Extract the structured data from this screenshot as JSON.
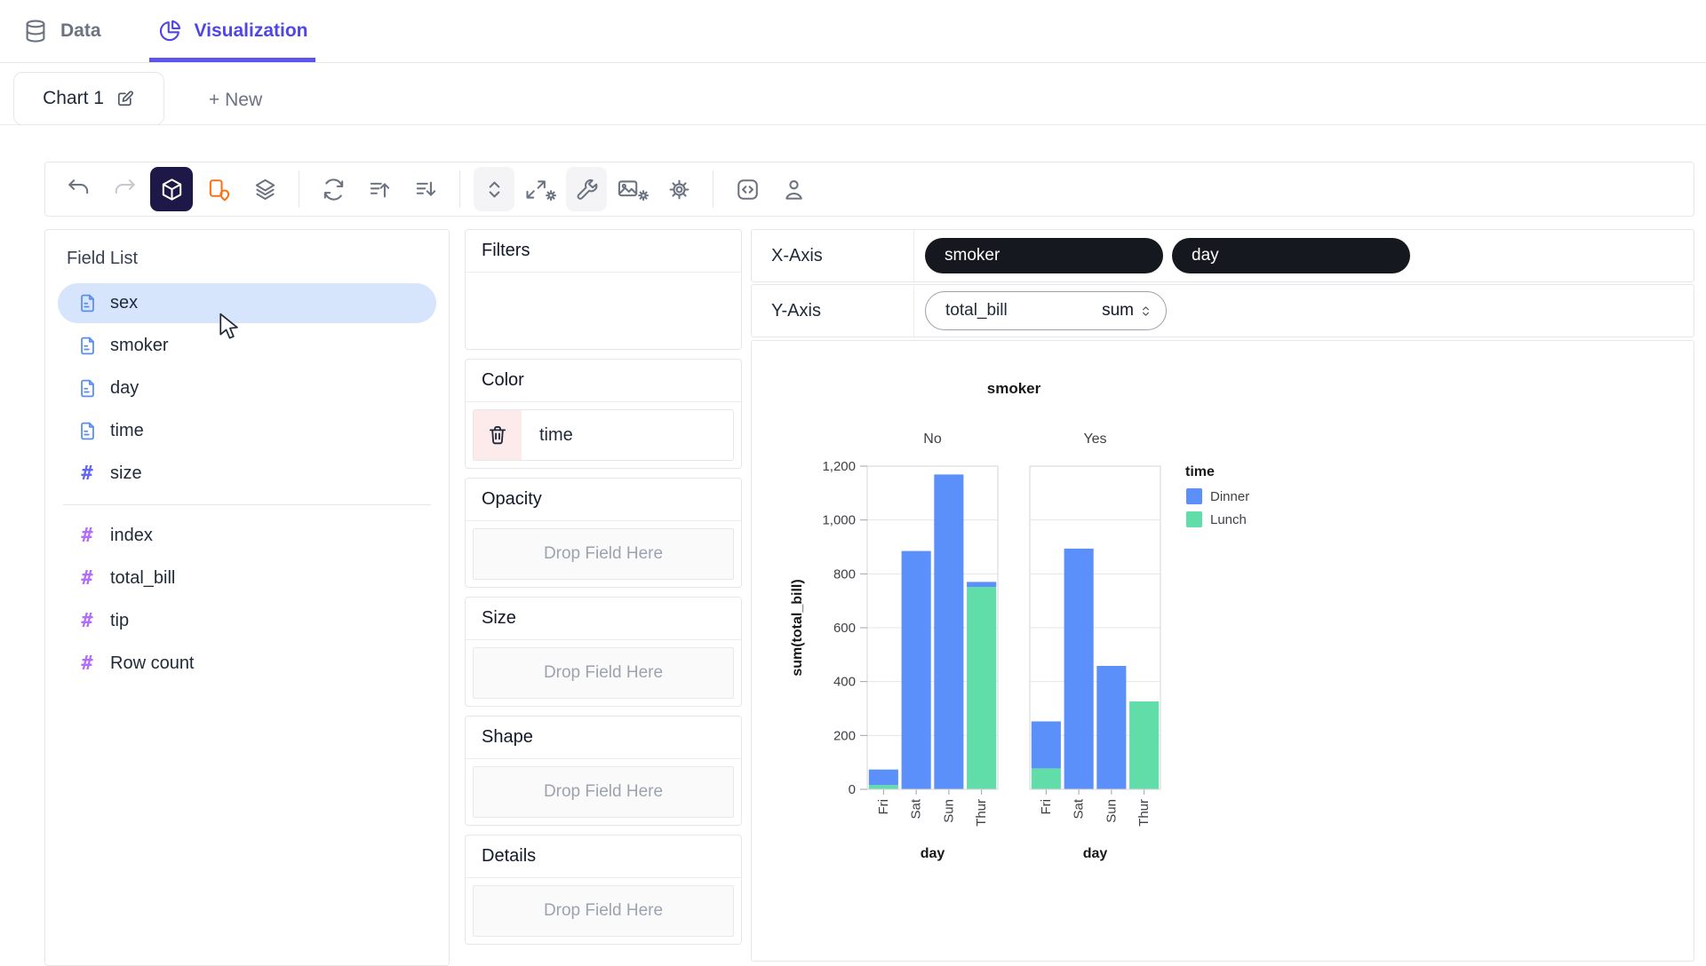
{
  "header": {
    "tabs": [
      {
        "id": "data",
        "label": "Data",
        "icon": "database"
      },
      {
        "id": "visualization",
        "label": "Visualization",
        "icon": "pie",
        "active": true
      }
    ]
  },
  "chart_tabs": {
    "active_label": "Chart 1",
    "edit_icon": "pencil",
    "new_label": "+ New"
  },
  "toolbar": {
    "items": [
      {
        "type": "btn",
        "icon": "undo",
        "name": "undo"
      },
      {
        "type": "btn",
        "icon": "redo",
        "name": "redo",
        "disabled": true
      },
      {
        "type": "btn",
        "icon": "cube",
        "name": "mark-type",
        "active": true
      },
      {
        "type": "btn",
        "icon": "geo-pin",
        "name": "geographic-mode",
        "orange": true
      },
      {
        "type": "btn",
        "icon": "layers",
        "name": "stack-mode"
      },
      {
        "type": "sep"
      },
      {
        "type": "btn",
        "icon": "refresh",
        "name": "transpose"
      },
      {
        "type": "btn",
        "icon": "sort-asc",
        "name": "sort-ascending"
      },
      {
        "type": "btn",
        "icon": "sort-desc",
        "name": "sort-descending"
      },
      {
        "type": "sep"
      },
      {
        "type": "btn",
        "icon": "chevrons-updown",
        "name": "axes-resize",
        "raised": true
      },
      {
        "type": "btn",
        "icon": "expand-gear",
        "name": "resize-settings",
        "wide": true
      },
      {
        "type": "btn",
        "icon": "wrench",
        "name": "wrench-tool",
        "raised": true
      },
      {
        "type": "btn",
        "icon": "image-gear",
        "name": "export-image",
        "wide": true
      },
      {
        "type": "btn",
        "icon": "gear",
        "name": "settings"
      },
      {
        "type": "sep"
      },
      {
        "type": "btn",
        "icon": "code",
        "name": "export-code"
      },
      {
        "type": "btn",
        "icon": "person",
        "name": "user"
      }
    ]
  },
  "field_list": {
    "title": "Field List",
    "groups": [
      {
        "name": "dimensions",
        "items": [
          {
            "label": "sex",
            "icon": "doc",
            "selected": true
          },
          {
            "label": "smoker",
            "icon": "doc"
          },
          {
            "label": "day",
            "icon": "doc"
          },
          {
            "label": "time",
            "icon": "doc"
          },
          {
            "label": "size",
            "icon": "hash",
            "icon_color": "#6366f1"
          }
        ]
      },
      {
        "name": "measures",
        "items": [
          {
            "label": "index",
            "icon": "hash",
            "icon_color": "#b26ef7"
          },
          {
            "label": "total_bill",
            "icon": "hash",
            "icon_color": "#b26ef7"
          },
          {
            "label": "tip",
            "icon": "hash",
            "icon_color": "#b26ef7"
          },
          {
            "label": "Row count",
            "icon": "hash",
            "icon_color": "#b26ef7"
          }
        ]
      }
    ]
  },
  "encodings": {
    "sections": [
      {
        "title": "Filters",
        "kind": "empty"
      },
      {
        "title": "Color",
        "kind": "pill",
        "pill": {
          "label": "time",
          "action_icon": "trash"
        }
      },
      {
        "title": "Opacity",
        "kind": "drop",
        "placeholder": "Drop Field Here"
      },
      {
        "title": "Size",
        "kind": "drop",
        "placeholder": "Drop Field Here"
      },
      {
        "title": "Shape",
        "kind": "drop",
        "placeholder": "Drop Field Here"
      },
      {
        "title": "Details",
        "kind": "drop",
        "placeholder": "Drop Field Here"
      }
    ]
  },
  "shelves": [
    {
      "label": "X-Axis",
      "pills": [
        {
          "label": "smoker",
          "style": "dark"
        },
        {
          "label": "day",
          "style": "dark"
        }
      ]
    },
    {
      "label": "Y-Axis",
      "pills": [
        {
          "label": "total_bill",
          "style": "light",
          "aggregation": "sum"
        }
      ]
    }
  ],
  "chart_data": {
    "type": "bar",
    "title": "smoker",
    "facet_field": "smoker",
    "facets": [
      "No",
      "Yes"
    ],
    "categories": [
      "Fri",
      "Sat",
      "Sun",
      "Thur"
    ],
    "xlabel": "day",
    "ylabel": "sum(total_bill)",
    "ylim": [
      0,
      1200
    ],
    "yticks": [
      0,
      200,
      400,
      600,
      800,
      1000,
      1200
    ],
    "stack_field": "time",
    "series": [
      {
        "name": "Dinner",
        "color": "#5B8FF9",
        "values": {
          "No": [
            57.7,
            884.78,
            1168.88,
            18.78
          ],
          "Yes": [
            174.28,
            893.62,
            458.28,
            0
          ]
        }
      },
      {
        "name": "Lunch",
        "color": "#61DDAA",
        "values": {
          "No": [
            15.98,
            0,
            0,
            751.31
          ],
          "Yes": [
            77.92,
            0,
            0,
            326.24
          ]
        }
      }
    ],
    "legend": {
      "title": "time",
      "position": "right",
      "entries": [
        "Dinner",
        "Lunch"
      ]
    },
    "grid": true
  },
  "colors": {
    "accent": "#4f46e5",
    "underline": "#5b54ee",
    "dim_blue": "#5b8def",
    "measure_purple": "#b26ef7",
    "bar_blue": "#5B8FF9",
    "bar_green": "#61DDAA",
    "pill_dark": "#15181e",
    "selection_blue": "#d7e5fc",
    "danger_bg": "#fdeaea",
    "orange": "#f97316"
  }
}
